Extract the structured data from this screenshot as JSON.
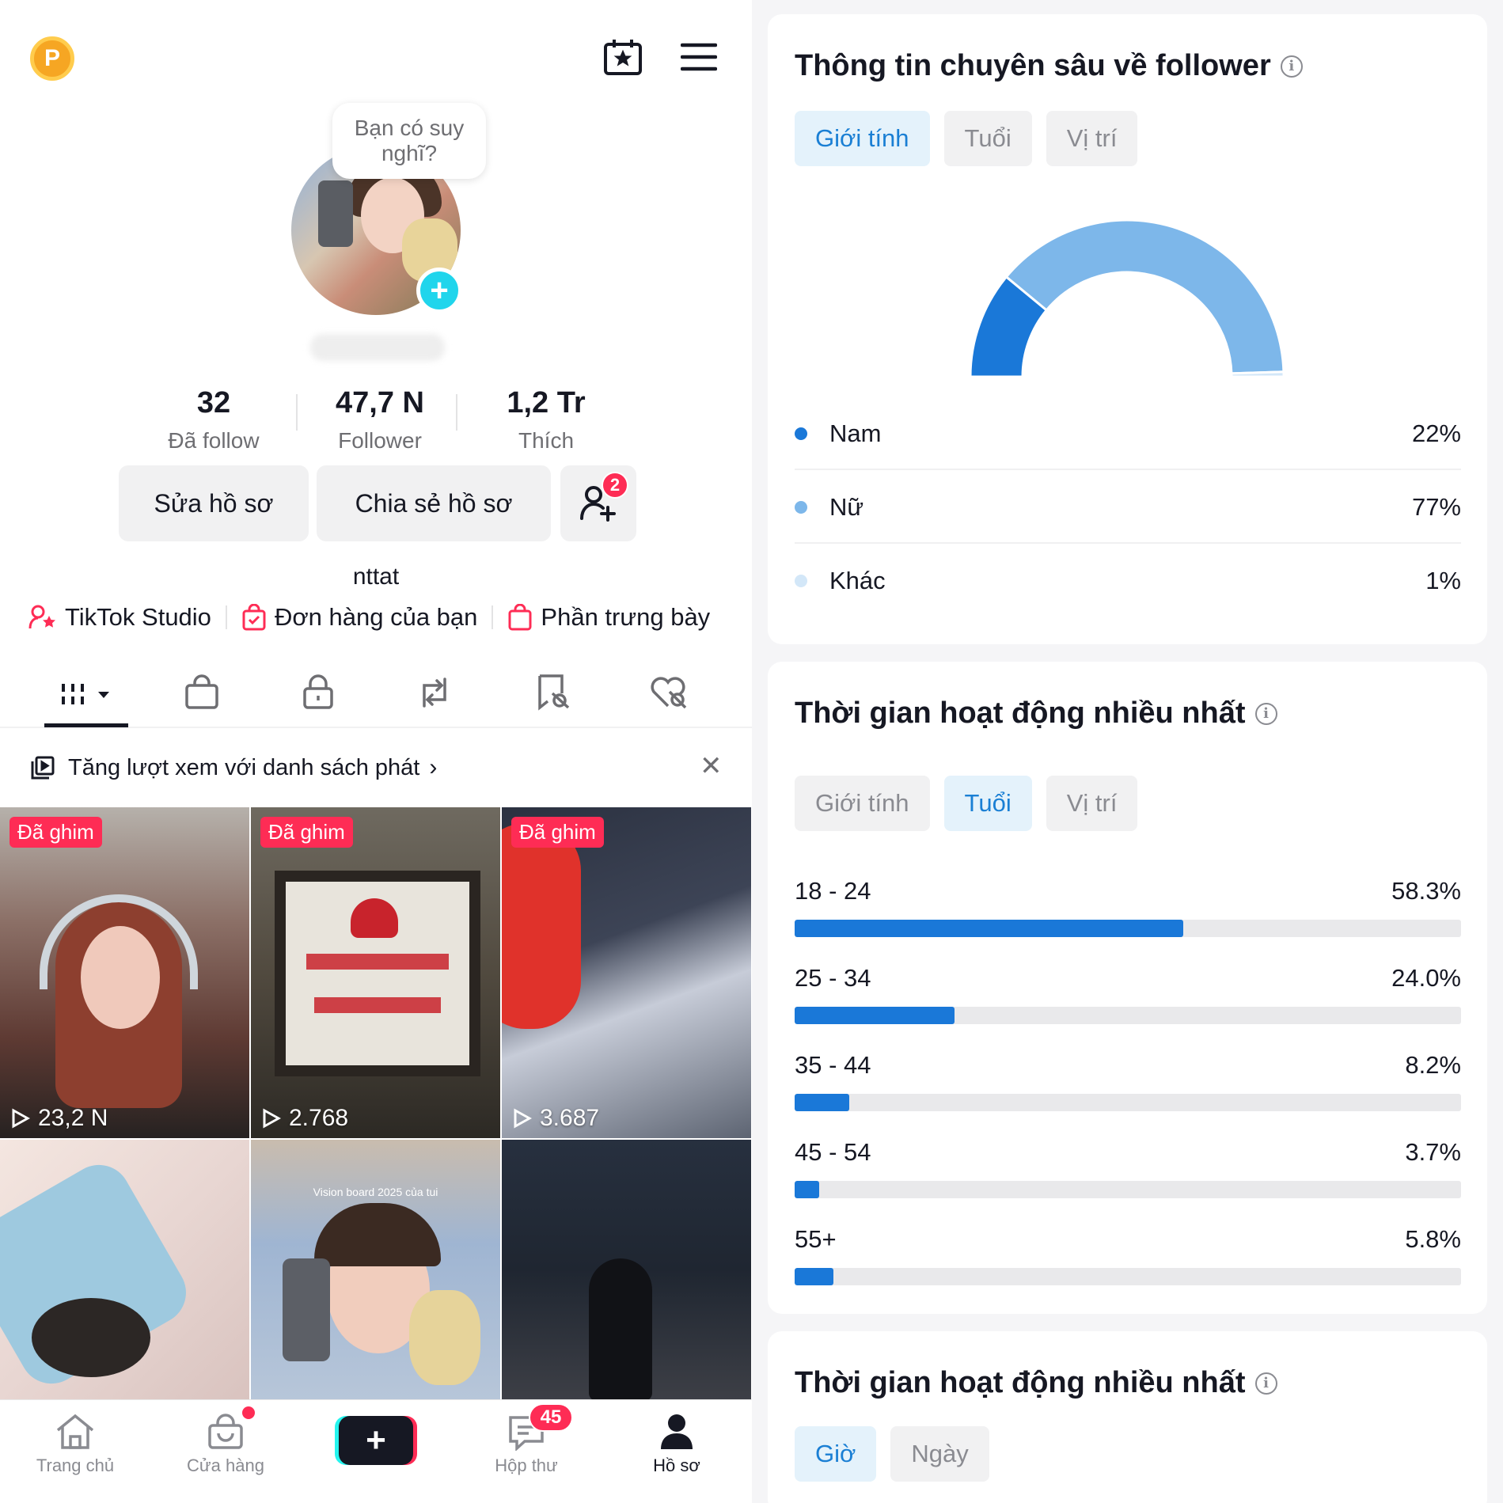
{
  "profile": {
    "bubble_text": "Bạn có suy nghĩ?",
    "stats": [
      {
        "value": "32",
        "label": "Đã follow"
      },
      {
        "value": "47,7 N",
        "label": "Follower"
      },
      {
        "value": "1,2 Tr",
        "label": "Thích"
      }
    ],
    "edit_button": "Sửa hồ sơ",
    "share_button": "Chia sẻ hồ sơ",
    "add_friend_badge": "2",
    "username": "nttat",
    "links": {
      "studio": "TikTok Studio",
      "orders": "Đơn hàng của bạn",
      "showcase": "Phần trưng bày"
    },
    "promo_text": "Tăng lượt xem với danh sách phát",
    "videos": [
      {
        "pinned_label": "Đã ghim",
        "views": "23,2 N"
      },
      {
        "pinned_label": "Đã ghim",
        "views": "2.768"
      },
      {
        "pinned_label": "Đã ghim",
        "views": "3.687"
      },
      {
        "pinned_label": "",
        "views": ""
      },
      {
        "pinned_label": "",
        "views": "",
        "caption": "Vision board 2025 của tui"
      },
      {
        "pinned_label": "",
        "views": ""
      }
    ],
    "nav": {
      "home": "Trang chủ",
      "shop": "Cửa hàng",
      "inbox": "Hộp thư",
      "inbox_badge": "45",
      "profile": "Hồ sơ"
    }
  },
  "insights": {
    "gender_card": {
      "title": "Thông tin chuyên sâu về follower",
      "tabs": [
        "Giới tính",
        "Tuổi",
        "Vị trí"
      ],
      "active_tab": 0,
      "rows": [
        {
          "label": "Nam",
          "value": "22%",
          "color": "#1a78d8"
        },
        {
          "label": "Nữ",
          "value": "77%",
          "color": "#7db7ea"
        },
        {
          "label": "Khác",
          "value": "1%",
          "color": "#d3e7f8"
        }
      ]
    },
    "age_card": {
      "title": "Thời gian hoạt động nhiều nhất",
      "tabs": [
        "Giới tính",
        "Tuổi",
        "Vị trí"
      ],
      "active_tab": 1,
      "rows": [
        {
          "label": "18 - 24",
          "value": "58.3%",
          "fraction": 0.583
        },
        {
          "label": "25 - 34",
          "value": "24.0%",
          "fraction": 0.24
        },
        {
          "label": "35 - 44",
          "value": "8.2%",
          "fraction": 0.082
        },
        {
          "label": "45 - 54",
          "value": "3.7%",
          "fraction": 0.037
        },
        {
          "label": "55+",
          "value": "5.8%",
          "fraction": 0.058
        }
      ]
    },
    "activity_card": {
      "title": "Thời gian hoạt động nhiều nhất",
      "tabs": [
        "Giờ",
        "Ngày"
      ],
      "active_tab": 0
    }
  },
  "chart_data": {
    "type": "pie",
    "categories": [
      "Nam",
      "Nữ",
      "Khác"
    ],
    "values": [
      22,
      77,
      1
    ],
    "title": ""
  }
}
